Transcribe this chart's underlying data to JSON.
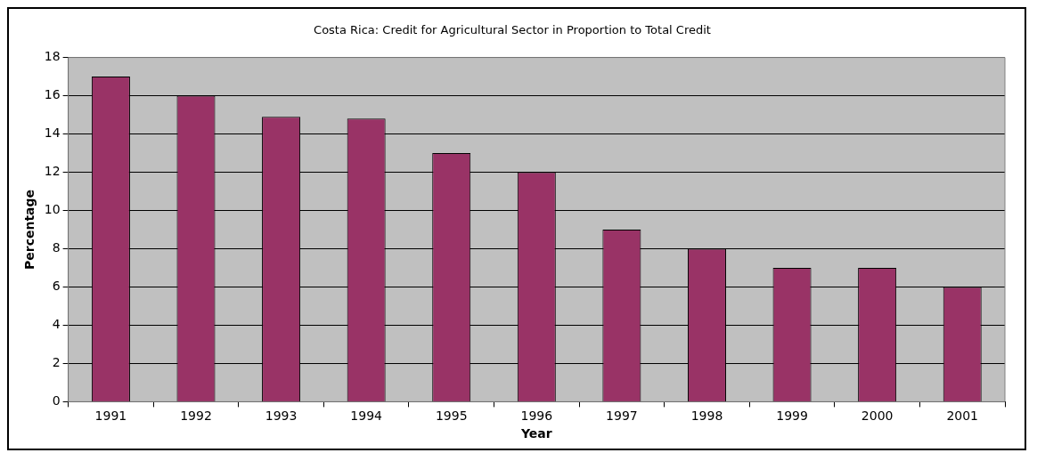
{
  "chart_data": {
    "type": "bar",
    "title": "Costa Rica: Credit for Agricultural Sector in Proportion to Total Credit",
    "xlabel": "Year",
    "ylabel": "Percentage",
    "categories": [
      "1991",
      "1992",
      "1993",
      "1994",
      "1995",
      "1996",
      "1997",
      "1998",
      "1999",
      "2000",
      "2001"
    ],
    "values": [
      17,
      16,
      14.9,
      14.8,
      13,
      12,
      9,
      8,
      7,
      7,
      6
    ],
    "color": "#993366",
    "ylim": [
      0,
      18
    ],
    "yticks": [
      0,
      2,
      4,
      6,
      8,
      10,
      12,
      14,
      16,
      18
    ],
    "grid": "y",
    "legend": false
  }
}
